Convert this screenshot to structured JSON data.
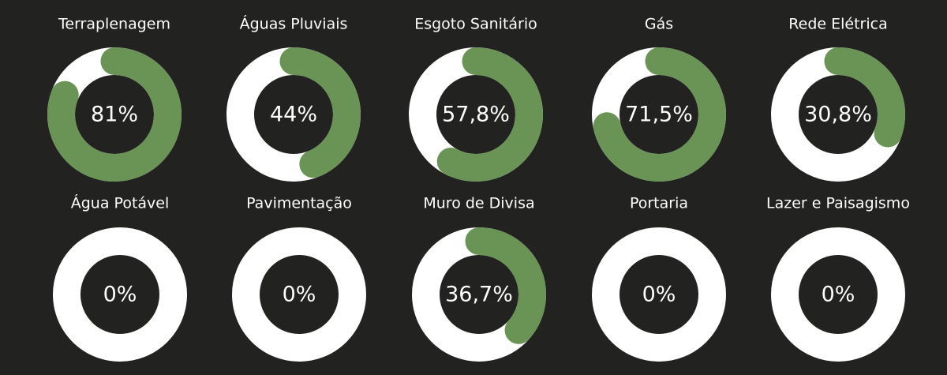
{
  "chart_data": [
    {
      "type": "donut",
      "title": "Terraplenagem",
      "values": [
        81
      ],
      "value_labels": [
        "81%"
      ],
      "color": "#6a9455",
      "track_color": "#ffffff"
    },
    {
      "type": "donut",
      "title": "Águas Pluviais",
      "values": [
        44
      ],
      "value_labels": [
        "44%"
      ],
      "color": "#6a9455",
      "track_color": "#ffffff"
    },
    {
      "type": "donut",
      "title": "Esgoto Sanitário",
      "values": [
        57.8
      ],
      "value_labels": [
        "57,8%"
      ],
      "color": "#6a9455",
      "track_color": "#ffffff"
    },
    {
      "type": "donut",
      "title": "Gás",
      "values": [
        71.5
      ],
      "value_labels": [
        "71,5%"
      ],
      "color": "#6a9455",
      "track_color": "#ffffff"
    },
    {
      "type": "donut",
      "title": "Rede Elétrica",
      "values": [
        30.8
      ],
      "value_labels": [
        "30,8%"
      ],
      "color": "#6a9455",
      "track_color": "#ffffff"
    },
    {
      "type": "donut",
      "title": "Água Potável",
      "values": [
        0
      ],
      "value_labels": [
        "0%"
      ],
      "color": "#6a9455",
      "track_color": "#ffffff"
    },
    {
      "type": "donut",
      "title": "Pavimentação",
      "values": [
        0
      ],
      "value_labels": [
        "0%"
      ],
      "color": "#6a9455",
      "track_color": "#ffffff"
    },
    {
      "type": "donut",
      "title": "Muro de Divisa",
      "values": [
        36.7
      ],
      "value_labels": [
        "36,7%"
      ],
      "color": "#6a9455",
      "track_color": "#ffffff"
    },
    {
      "type": "donut",
      "title": "Portaria",
      "values": [
        0
      ],
      "value_labels": [
        "0%"
      ],
      "color": "#6a9455",
      "track_color": "#ffffff"
    },
    {
      "type": "donut",
      "title": "Lazer e Paisagismo",
      "values": [
        0
      ],
      "value_labels": [
        "0%"
      ],
      "color": "#6a9455",
      "track_color": "#ffffff"
    }
  ]
}
